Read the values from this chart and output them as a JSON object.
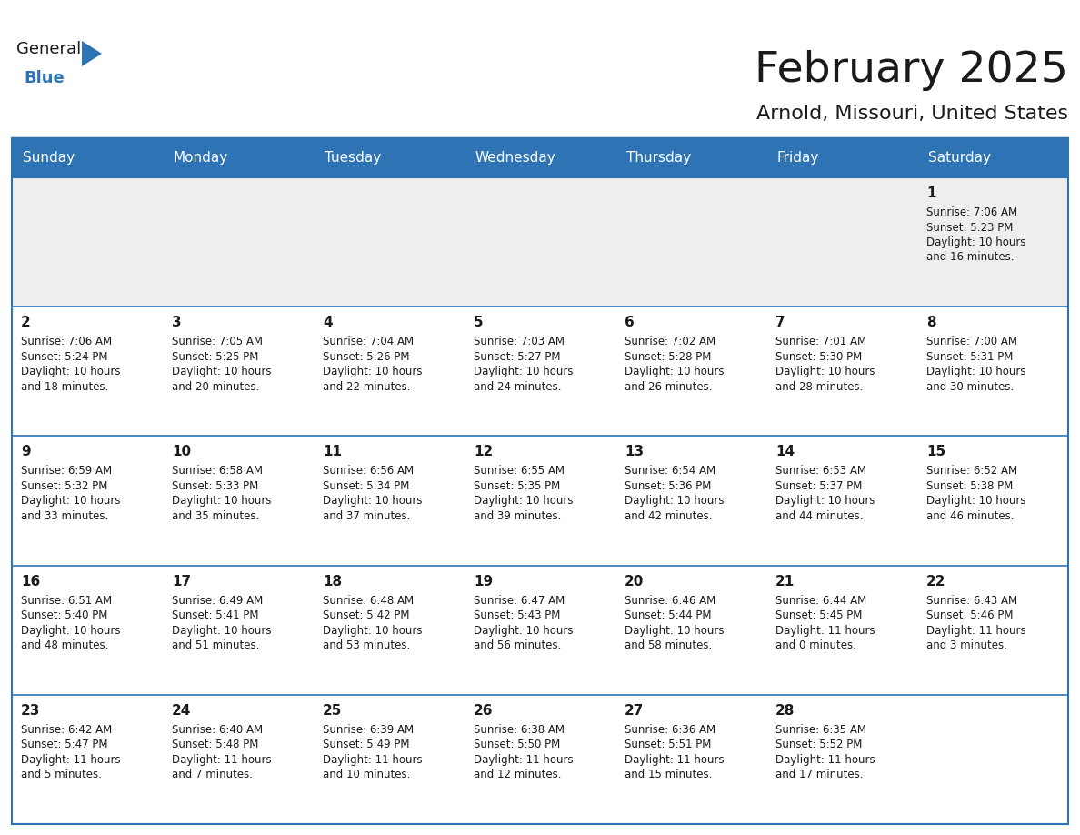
{
  "title": "February 2025",
  "subtitle": "Arnold, Missouri, United States",
  "header_bg": "#2E74B5",
  "header_text": "#FFFFFF",
  "border_color": "#2E74B5",
  "day_headers": [
    "Sunday",
    "Monday",
    "Tuesday",
    "Wednesday",
    "Thursday",
    "Friday",
    "Saturday"
  ],
  "days": [
    {
      "day": 1,
      "col": 6,
      "row": 0,
      "sunrise": "7:06 AM",
      "sunset": "5:23 PM",
      "daylight": "10 hours\nand 16 minutes."
    },
    {
      "day": 2,
      "col": 0,
      "row": 1,
      "sunrise": "7:06 AM",
      "sunset": "5:24 PM",
      "daylight": "10 hours\nand 18 minutes."
    },
    {
      "day": 3,
      "col": 1,
      "row": 1,
      "sunrise": "7:05 AM",
      "sunset": "5:25 PM",
      "daylight": "10 hours\nand 20 minutes."
    },
    {
      "day": 4,
      "col": 2,
      "row": 1,
      "sunrise": "7:04 AM",
      "sunset": "5:26 PM",
      "daylight": "10 hours\nand 22 minutes."
    },
    {
      "day": 5,
      "col": 3,
      "row": 1,
      "sunrise": "7:03 AM",
      "sunset": "5:27 PM",
      "daylight": "10 hours\nand 24 minutes."
    },
    {
      "day": 6,
      "col": 4,
      "row": 1,
      "sunrise": "7:02 AM",
      "sunset": "5:28 PM",
      "daylight": "10 hours\nand 26 minutes."
    },
    {
      "day": 7,
      "col": 5,
      "row": 1,
      "sunrise": "7:01 AM",
      "sunset": "5:30 PM",
      "daylight": "10 hours\nand 28 minutes."
    },
    {
      "day": 8,
      "col": 6,
      "row": 1,
      "sunrise": "7:00 AM",
      "sunset": "5:31 PM",
      "daylight": "10 hours\nand 30 minutes."
    },
    {
      "day": 9,
      "col": 0,
      "row": 2,
      "sunrise": "6:59 AM",
      "sunset": "5:32 PM",
      "daylight": "10 hours\nand 33 minutes."
    },
    {
      "day": 10,
      "col": 1,
      "row": 2,
      "sunrise": "6:58 AM",
      "sunset": "5:33 PM",
      "daylight": "10 hours\nand 35 minutes."
    },
    {
      "day": 11,
      "col": 2,
      "row": 2,
      "sunrise": "6:56 AM",
      "sunset": "5:34 PM",
      "daylight": "10 hours\nand 37 minutes."
    },
    {
      "day": 12,
      "col": 3,
      "row": 2,
      "sunrise": "6:55 AM",
      "sunset": "5:35 PM",
      "daylight": "10 hours\nand 39 minutes."
    },
    {
      "day": 13,
      "col": 4,
      "row": 2,
      "sunrise": "6:54 AM",
      "sunset": "5:36 PM",
      "daylight": "10 hours\nand 42 minutes."
    },
    {
      "day": 14,
      "col": 5,
      "row": 2,
      "sunrise": "6:53 AM",
      "sunset": "5:37 PM",
      "daylight": "10 hours\nand 44 minutes."
    },
    {
      "day": 15,
      "col": 6,
      "row": 2,
      "sunrise": "6:52 AM",
      "sunset": "5:38 PM",
      "daylight": "10 hours\nand 46 minutes."
    },
    {
      "day": 16,
      "col": 0,
      "row": 3,
      "sunrise": "6:51 AM",
      "sunset": "5:40 PM",
      "daylight": "10 hours\nand 48 minutes."
    },
    {
      "day": 17,
      "col": 1,
      "row": 3,
      "sunrise": "6:49 AM",
      "sunset": "5:41 PM",
      "daylight": "10 hours\nand 51 minutes."
    },
    {
      "day": 18,
      "col": 2,
      "row": 3,
      "sunrise": "6:48 AM",
      "sunset": "5:42 PM",
      "daylight": "10 hours\nand 53 minutes."
    },
    {
      "day": 19,
      "col": 3,
      "row": 3,
      "sunrise": "6:47 AM",
      "sunset": "5:43 PM",
      "daylight": "10 hours\nand 56 minutes."
    },
    {
      "day": 20,
      "col": 4,
      "row": 3,
      "sunrise": "6:46 AM",
      "sunset": "5:44 PM",
      "daylight": "10 hours\nand 58 minutes."
    },
    {
      "day": 21,
      "col": 5,
      "row": 3,
      "sunrise": "6:44 AM",
      "sunset": "5:45 PM",
      "daylight": "11 hours\nand 0 minutes."
    },
    {
      "day": 22,
      "col": 6,
      "row": 3,
      "sunrise": "6:43 AM",
      "sunset": "5:46 PM",
      "daylight": "11 hours\nand 3 minutes."
    },
    {
      "day": 23,
      "col": 0,
      "row": 4,
      "sunrise": "6:42 AM",
      "sunset": "5:47 PM",
      "daylight": "11 hours\nand 5 minutes."
    },
    {
      "day": 24,
      "col": 1,
      "row": 4,
      "sunrise": "6:40 AM",
      "sunset": "5:48 PM",
      "daylight": "11 hours\nand 7 minutes."
    },
    {
      "day": 25,
      "col": 2,
      "row": 4,
      "sunrise": "6:39 AM",
      "sunset": "5:49 PM",
      "daylight": "11 hours\nand 10 minutes."
    },
    {
      "day": 26,
      "col": 3,
      "row": 4,
      "sunrise": "6:38 AM",
      "sunset": "5:50 PM",
      "daylight": "11 hours\nand 12 minutes."
    },
    {
      "day": 27,
      "col": 4,
      "row": 4,
      "sunrise": "6:36 AM",
      "sunset": "5:51 PM",
      "daylight": "11 hours\nand 15 minutes."
    },
    {
      "day": 28,
      "col": 5,
      "row": 4,
      "sunrise": "6:35 AM",
      "sunset": "5:52 PM",
      "daylight": "11 hours\nand 17 minutes."
    }
  ],
  "num_rows": 5,
  "logo_text_general": "General",
  "logo_text_blue": "Blue",
  "logo_color_general": "#1a1a1a",
  "logo_color_blue": "#2E74B5",
  "logo_triangle_color": "#2E74B5",
  "day_num_color": "#1a1a1a",
  "info_text_color": "#1a1a1a",
  "cell_bg_row0": "#EEEEEE",
  "cell_bg_others": "#FFFFFF",
  "title_fontsize": 34,
  "subtitle_fontsize": 16,
  "header_fontsize": 11,
  "day_num_fontsize": 11,
  "info_fontsize": 8.5
}
